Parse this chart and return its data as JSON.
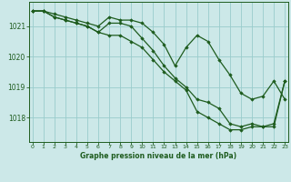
{
  "title": "Graphe pression niveau de la mer (hPa)",
  "bg_color": "#cce8e8",
  "grid_color": "#99cccc",
  "line_color": "#1e5c1e",
  "x_ticks": [
    0,
    1,
    2,
    3,
    4,
    5,
    6,
    7,
    8,
    9,
    10,
    11,
    12,
    13,
    14,
    15,
    16,
    17,
    18,
    19,
    20,
    21,
    22,
    23
  ],
  "y_ticks": [
    1018,
    1019,
    1020,
    1021
  ],
  "ylim": [
    1017.2,
    1021.8
  ],
  "xlim": [
    -0.3,
    23.3
  ],
  "series": [
    [
      1021.5,
      1021.5,
      1021.4,
      1021.3,
      1021.2,
      1021.1,
      1021.0,
      1021.3,
      1021.2,
      1021.2,
      1021.1,
      1020.8,
      1020.4,
      1019.7,
      1020.3,
      1020.7,
      1020.5,
      1019.9,
      1019.4,
      1018.8,
      1018.6,
      1018.7,
      1019.2,
      1018.6
    ],
    [
      1021.5,
      1021.5,
      1021.3,
      1021.2,
      1021.1,
      1021.0,
      1020.8,
      1020.7,
      1020.7,
      1020.5,
      1020.3,
      1019.9,
      1019.5,
      1019.2,
      1018.9,
      1018.2,
      1018.0,
      1017.8,
      1017.6,
      1017.6,
      1017.7,
      1017.7,
      1017.7,
      1019.2
    ],
    [
      1021.5,
      1021.5,
      1021.3,
      1021.2,
      1021.1,
      1021.0,
      1020.8,
      1021.1,
      1021.1,
      1021.0,
      1020.6,
      1020.2,
      1019.7,
      1019.3,
      1019.0,
      1018.6,
      1018.5,
      1018.3,
      1017.8,
      1017.7,
      1017.8,
      1017.7,
      1017.8,
      1019.2
    ]
  ]
}
